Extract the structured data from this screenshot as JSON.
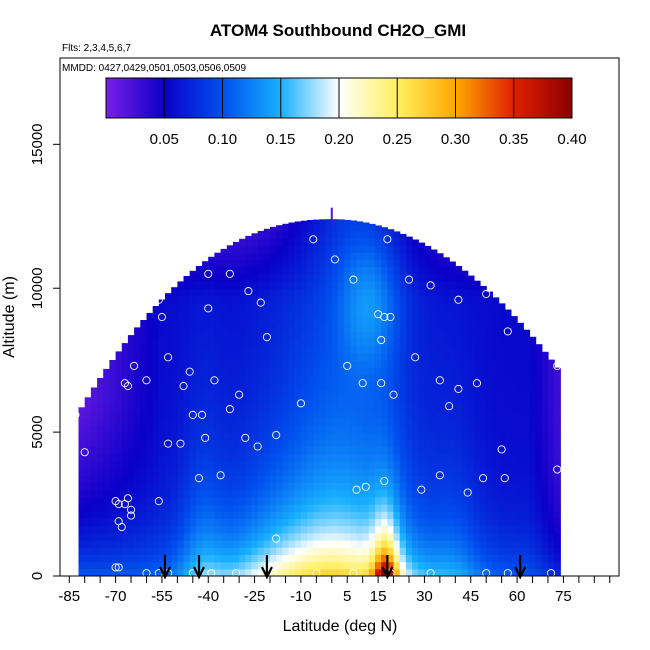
{
  "chart_data": {
    "type": "heatmap",
    "title": "ATOM4 Southbound CH2O_GMI",
    "annotations": [
      "Flts: 2,3,4,5,6,7",
      "MMDD: 0427,0429,0501,0503,0506,0509"
    ],
    "xlabel": "Latitude (deg N)",
    "ylabel": "Altitude (m)",
    "xlim": [
      -88,
      93
    ],
    "ylim": [
      0,
      18000
    ],
    "x_ticks": [
      -85,
      -70,
      -55,
      -40,
      -25,
      -10,
      5,
      15,
      30,
      45,
      60,
      75
    ],
    "y_ticks": [
      0,
      5000,
      10000,
      15000
    ],
    "colorbar": {
      "min": 0.0,
      "max": 0.4,
      "ticks": [
        0.05,
        0.1,
        0.15,
        0.2,
        0.25,
        0.3,
        0.35,
        0.4
      ],
      "tick_labels": [
        "0.05",
        "0.10",
        "0.15",
        "0.20",
        "0.25",
        "0.30",
        "0.35",
        "0.40"
      ],
      "colors": [
        "#7a1fe6",
        "#0a00c8",
        "#0050ee",
        "#18b0ff",
        "#ffffff",
        "#fff060",
        "#ffa800",
        "#e02000",
        "#8a0000"
      ]
    },
    "profile_markers_lat": [
      -54,
      -43,
      -21,
      18,
      61
    ],
    "observations": [
      {
        "lat": -60,
        "alt": 11400
      },
      {
        "lat": -45,
        "alt": 11700
      },
      {
        "lat": -63,
        "alt": 10800
      },
      {
        "lat": -64,
        "alt": 10400
      },
      {
        "lat": -78,
        "alt": 9500
      },
      {
        "lat": -70,
        "alt": 9300
      },
      {
        "lat": -59,
        "alt": 9800
      },
      {
        "lat": -62,
        "alt": 10000
      },
      {
        "lat": -56,
        "alt": 9600
      },
      {
        "lat": -55,
        "alt": 9000
      },
      {
        "lat": -40,
        "alt": 10500
      },
      {
        "lat": -33,
        "alt": 10500
      },
      {
        "lat": -27,
        "alt": 9900
      },
      {
        "lat": -23,
        "alt": 9500
      },
      {
        "lat": -40,
        "alt": 9300
      },
      {
        "lat": -6,
        "alt": 11700
      },
      {
        "lat": 1,
        "alt": 11000
      },
      {
        "lat": 7,
        "alt": 10300
      },
      {
        "lat": 18,
        "alt": 11700
      },
      {
        "lat": 25,
        "alt": 10300
      },
      {
        "lat": 32,
        "alt": 10100
      },
      {
        "lat": 41,
        "alt": 9600
      },
      {
        "lat": 50,
        "alt": 9800
      },
      {
        "lat": 15,
        "alt": 9100
      },
      {
        "lat": 17,
        "alt": 9000
      },
      {
        "lat": 19,
        "alt": 9000
      },
      {
        "lat": 16,
        "alt": 8200
      },
      {
        "lat": 57,
        "alt": 8500
      },
      {
        "lat": -21,
        "alt": 8300
      },
      {
        "lat": -64,
        "alt": 7300
      },
      {
        "lat": -60,
        "alt": 6800
      },
      {
        "lat": -53,
        "alt": 7600
      },
      {
        "lat": -46,
        "alt": 7100
      },
      {
        "lat": -38,
        "alt": 6800
      },
      {
        "lat": -67,
        "alt": 6700
      },
      {
        "lat": -66,
        "alt": 6600
      },
      {
        "lat": -48,
        "alt": 6600
      },
      {
        "lat": -30,
        "alt": 6300
      },
      {
        "lat": 5,
        "alt": 7300
      },
      {
        "lat": 10,
        "alt": 6700
      },
      {
        "lat": 16,
        "alt": 6700
      },
      {
        "lat": 20,
        "alt": 6300
      },
      {
        "lat": 27,
        "alt": 7600
      },
      {
        "lat": 35,
        "alt": 6800
      },
      {
        "lat": 41,
        "alt": 6500
      },
      {
        "lat": 47,
        "alt": 6700
      },
      {
        "lat": 38,
        "alt": 5900
      },
      {
        "lat": 73,
        "alt": 7300
      },
      {
        "lat": -83,
        "alt": 5600
      },
      {
        "lat": -45,
        "alt": 5600
      },
      {
        "lat": -42,
        "alt": 5600
      },
      {
        "lat": -33,
        "alt": 5800
      },
      {
        "lat": -10,
        "alt": 6000
      },
      {
        "lat": -18,
        "alt": 4900
      },
      {
        "lat": -41,
        "alt": 4800
      },
      {
        "lat": -28,
        "alt": 4800
      },
      {
        "lat": -53,
        "alt": 4600
      },
      {
        "lat": -49,
        "alt": 4600
      },
      {
        "lat": -24,
        "alt": 4500
      },
      {
        "lat": -80,
        "alt": 4300
      },
      {
        "lat": 55,
        "alt": 4400
      },
      {
        "lat": 73,
        "alt": 3700
      },
      {
        "lat": -43,
        "alt": 3400
      },
      {
        "lat": -36,
        "alt": 3500
      },
      {
        "lat": 35,
        "alt": 3500
      },
      {
        "lat": 49,
        "alt": 3400
      },
      {
        "lat": 56,
        "alt": 3400
      },
      {
        "lat": 17,
        "alt": 3300
      },
      {
        "lat": 29,
        "alt": 3000
      },
      {
        "lat": 8,
        "alt": 3000
      },
      {
        "lat": 11,
        "alt": 3100
      },
      {
        "lat": 44,
        "alt": 2900
      },
      {
        "lat": -66,
        "alt": 2700
      },
      {
        "lat": -70,
        "alt": 2600
      },
      {
        "lat": -69,
        "alt": 2500
      },
      {
        "lat": -67,
        "alt": 2500
      },
      {
        "lat": -56,
        "alt": 2600
      },
      {
        "lat": -65,
        "alt": 2300
      },
      {
        "lat": -65,
        "alt": 2100
      },
      {
        "lat": -69,
        "alt": 1900
      },
      {
        "lat": -68,
        "alt": 1700
      },
      {
        "lat": -18,
        "alt": 1300
      },
      {
        "lat": -70,
        "alt": 300
      },
      {
        "lat": -69,
        "alt": 300
      },
      {
        "lat": -60,
        "alt": 100
      },
      {
        "lat": -56,
        "alt": 100
      },
      {
        "lat": -53,
        "alt": 100
      },
      {
        "lat": -45,
        "alt": 100
      },
      {
        "lat": -39,
        "alt": 100
      },
      {
        "lat": -31,
        "alt": 100
      },
      {
        "lat": -19,
        "alt": 100
      },
      {
        "lat": -5,
        "alt": 100
      },
      {
        "lat": 7,
        "alt": 100
      },
      {
        "lat": 19,
        "alt": 100
      },
      {
        "lat": 32,
        "alt": 100
      },
      {
        "lat": 50,
        "alt": 100
      },
      {
        "lat": 57,
        "alt": 100
      },
      {
        "lat": 71,
        "alt": 100
      }
    ]
  }
}
